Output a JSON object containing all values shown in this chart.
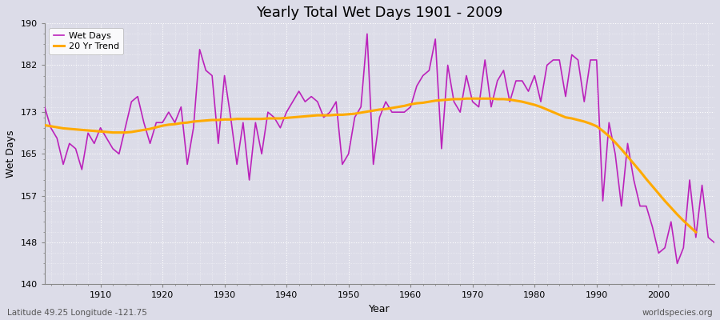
{
  "title": "Yearly Total Wet Days 1901 - 2009",
  "xlabel": "Year",
  "ylabel": "Wet Days",
  "subtitle": "Latitude 49.25 Longitude -121.75",
  "watermark": "worldspecies.org",
  "ylim": [
    140,
    190
  ],
  "yticks": [
    140,
    148,
    157,
    165,
    173,
    182,
    190
  ],
  "line_color": "#bb22bb",
  "trend_color": "#ffaa00",
  "background_color": "#dcdce8",
  "grid_color": "#ffffff",
  "years": [
    1901,
    1902,
    1903,
    1904,
    1905,
    1906,
    1907,
    1908,
    1909,
    1910,
    1911,
    1912,
    1913,
    1914,
    1915,
    1916,
    1917,
    1918,
    1919,
    1920,
    1921,
    1922,
    1923,
    1924,
    1925,
    1926,
    1927,
    1928,
    1929,
    1930,
    1931,
    1932,
    1933,
    1934,
    1935,
    1936,
    1937,
    1938,
    1939,
    1940,
    1941,
    1942,
    1943,
    1944,
    1945,
    1946,
    1947,
    1948,
    1949,
    1950,
    1951,
    1952,
    1953,
    1954,
    1955,
    1956,
    1957,
    1958,
    1959,
    1960,
    1961,
    1962,
    1963,
    1964,
    1965,
    1966,
    1967,
    1968,
    1969,
    1970,
    1971,
    1972,
    1973,
    1974,
    1975,
    1976,
    1977,
    1978,
    1979,
    1980,
    1981,
    1982,
    1983,
    1984,
    1985,
    1986,
    1987,
    1988,
    1989,
    1990,
    1991,
    1992,
    1993,
    1994,
    1995,
    1996,
    1997,
    1998,
    1999,
    2000,
    2001,
    2002,
    2003,
    2004,
    2005,
    2006,
    2007,
    2008,
    2009
  ],
  "wet_days": [
    174,
    170,
    168,
    163,
    167,
    166,
    162,
    169,
    167,
    170,
    168,
    166,
    165,
    170,
    175,
    176,
    171,
    167,
    171,
    171,
    173,
    171,
    174,
    163,
    170,
    185,
    181,
    180,
    167,
    180,
    172,
    163,
    171,
    160,
    171,
    165,
    173,
    172,
    170,
    173,
    175,
    177,
    175,
    176,
    175,
    172,
    173,
    175,
    163,
    165,
    172,
    174,
    188,
    163,
    172,
    175,
    173,
    173,
    173,
    174,
    178,
    180,
    181,
    187,
    166,
    182,
    175,
    173,
    180,
    175,
    174,
    183,
    174,
    179,
    181,
    175,
    179,
    179,
    177,
    180,
    175,
    182,
    183,
    183,
    176,
    184,
    183,
    175,
    183,
    183,
    156,
    171,
    165,
    155,
    167,
    160,
    155,
    155,
    151,
    146,
    147,
    152,
    144,
    147,
    160,
    149,
    159,
    149,
    148
  ],
  "trend": [
    170.5,
    170.3,
    170.1,
    169.9,
    169.8,
    169.7,
    169.6,
    169.5,
    169.4,
    169.3,
    169.2,
    169.1,
    169.1,
    169.1,
    169.2,
    169.4,
    169.6,
    169.8,
    170.1,
    170.4,
    170.6,
    170.7,
    170.9,
    171.0,
    171.2,
    171.3,
    171.4,
    171.5,
    171.5,
    171.6,
    171.6,
    171.7,
    171.7,
    171.7,
    171.7,
    171.7,
    171.8,
    171.8,
    171.8,
    171.9,
    172.0,
    172.1,
    172.2,
    172.3,
    172.4,
    172.4,
    172.4,
    172.5,
    172.5,
    172.6,
    172.7,
    172.9,
    173.1,
    173.3,
    173.5,
    173.6,
    173.8,
    174.0,
    174.2,
    174.5,
    174.7,
    174.8,
    175.0,
    175.2,
    175.3,
    175.4,
    175.5,
    175.5,
    175.6,
    175.6,
    175.6,
    175.6,
    175.6,
    175.5,
    175.5,
    175.4,
    175.2,
    175.0,
    174.7,
    174.4,
    174.0,
    173.5,
    173.0,
    172.5,
    172.0,
    171.8,
    171.5,
    171.2,
    170.8,
    170.3,
    169.4,
    168.4,
    167.2,
    165.9,
    164.5,
    163.1,
    161.7,
    160.2,
    158.8,
    157.4,
    156.0,
    154.7,
    153.4,
    152.2,
    151.1,
    150.0,
    null,
    null,
    null
  ]
}
